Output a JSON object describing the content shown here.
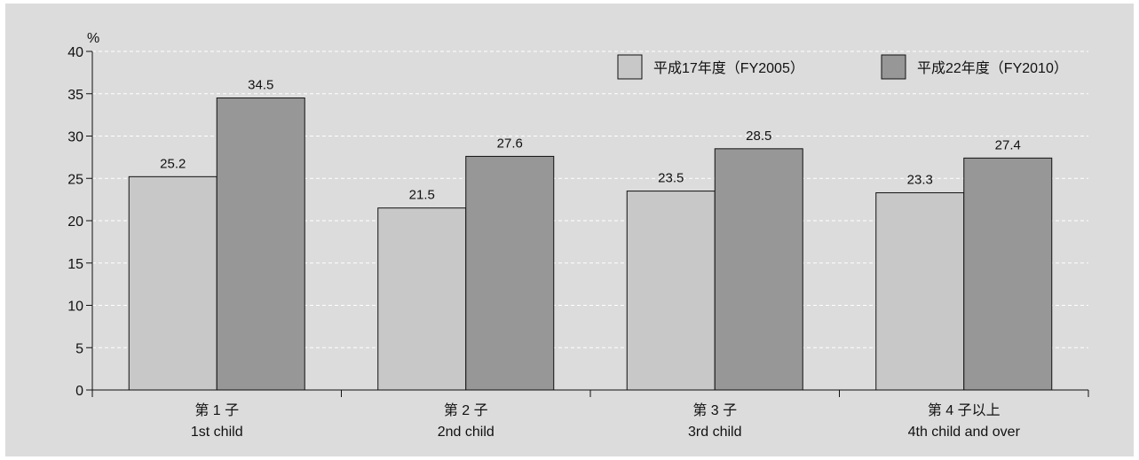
{
  "chart_data": {
    "type": "bar",
    "ylabel": "%",
    "ylim": [
      0,
      40
    ],
    "yticks": [
      0,
      5,
      10,
      15,
      20,
      25,
      30,
      35,
      40
    ],
    "grid": "horizontal-dashed",
    "legend_position": "top-right",
    "categories": [
      {
        "line1": "第 1 子",
        "line2": "1st child"
      },
      {
        "line1": "第 2 子",
        "line2": "2nd child"
      },
      {
        "line1": "第 3 子",
        "line2": "3rd child"
      },
      {
        "line1": "第 4 子以上",
        "line2": "4th child and over"
      }
    ],
    "series": [
      {
        "name": "平成17年度（FY2005）",
        "color": "#c8c8c8",
        "values": [
          25.2,
          21.5,
          23.5,
          23.3
        ]
      },
      {
        "name": "平成22年度（FY2010）",
        "color": "#979797",
        "values": [
          34.5,
          27.6,
          28.5,
          27.4
        ]
      }
    ],
    "background_color": "#dcdcdc"
  }
}
